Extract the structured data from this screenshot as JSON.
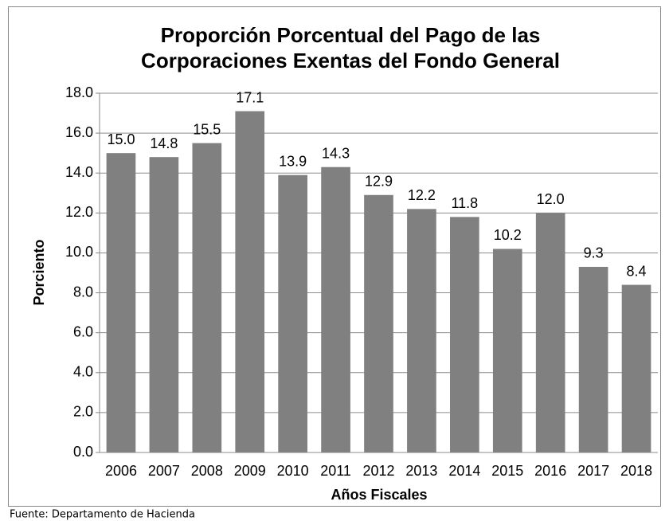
{
  "chart_data": {
    "type": "bar",
    "title": "Proporción Porcentual del Pago de las",
    "subtitle": "Corporaciones Exentas del Fondo General",
    "y_label": "Porciento",
    "x_label": "Años Fiscales",
    "source": "Fuente: Departamento de Hacienda",
    "categories": [
      "2006",
      "2007",
      "2008",
      "2009",
      "2010",
      "2011",
      "2012",
      "2013",
      "2014",
      "2015",
      "2016",
      "2017",
      "2018"
    ],
    "values": [
      15.0,
      14.8,
      15.5,
      17.1,
      13.9,
      14.3,
      12.9,
      12.2,
      11.8,
      10.2,
      12.0,
      9.3,
      8.4
    ],
    "value_labels": [
      "15.0",
      "14.8",
      "15.5",
      "17.1",
      "13.9",
      "14.3",
      "12.9",
      "12.2",
      "11.8",
      "10.2",
      "12.0",
      "9.3",
      "8.4"
    ],
    "color": "#808080",
    "ylim": [
      0,
      18
    ],
    "yticks": [
      {
        "value": 0,
        "label": "0.0"
      },
      {
        "value": 2,
        "label": "2.0"
      },
      {
        "value": 4,
        "label": "4.0"
      },
      {
        "value": 6,
        "label": "6.0"
      },
      {
        "value": 8,
        "label": "8.0"
      },
      {
        "value": 10,
        "label": "10.0"
      },
      {
        "value": 12,
        "label": "12.0"
      },
      {
        "value": 14,
        "label": "14.0"
      },
      {
        "value": 16,
        "label": "16.0"
      },
      {
        "value": 18,
        "label": "18.0"
      }
    ],
    "grid": true
  }
}
